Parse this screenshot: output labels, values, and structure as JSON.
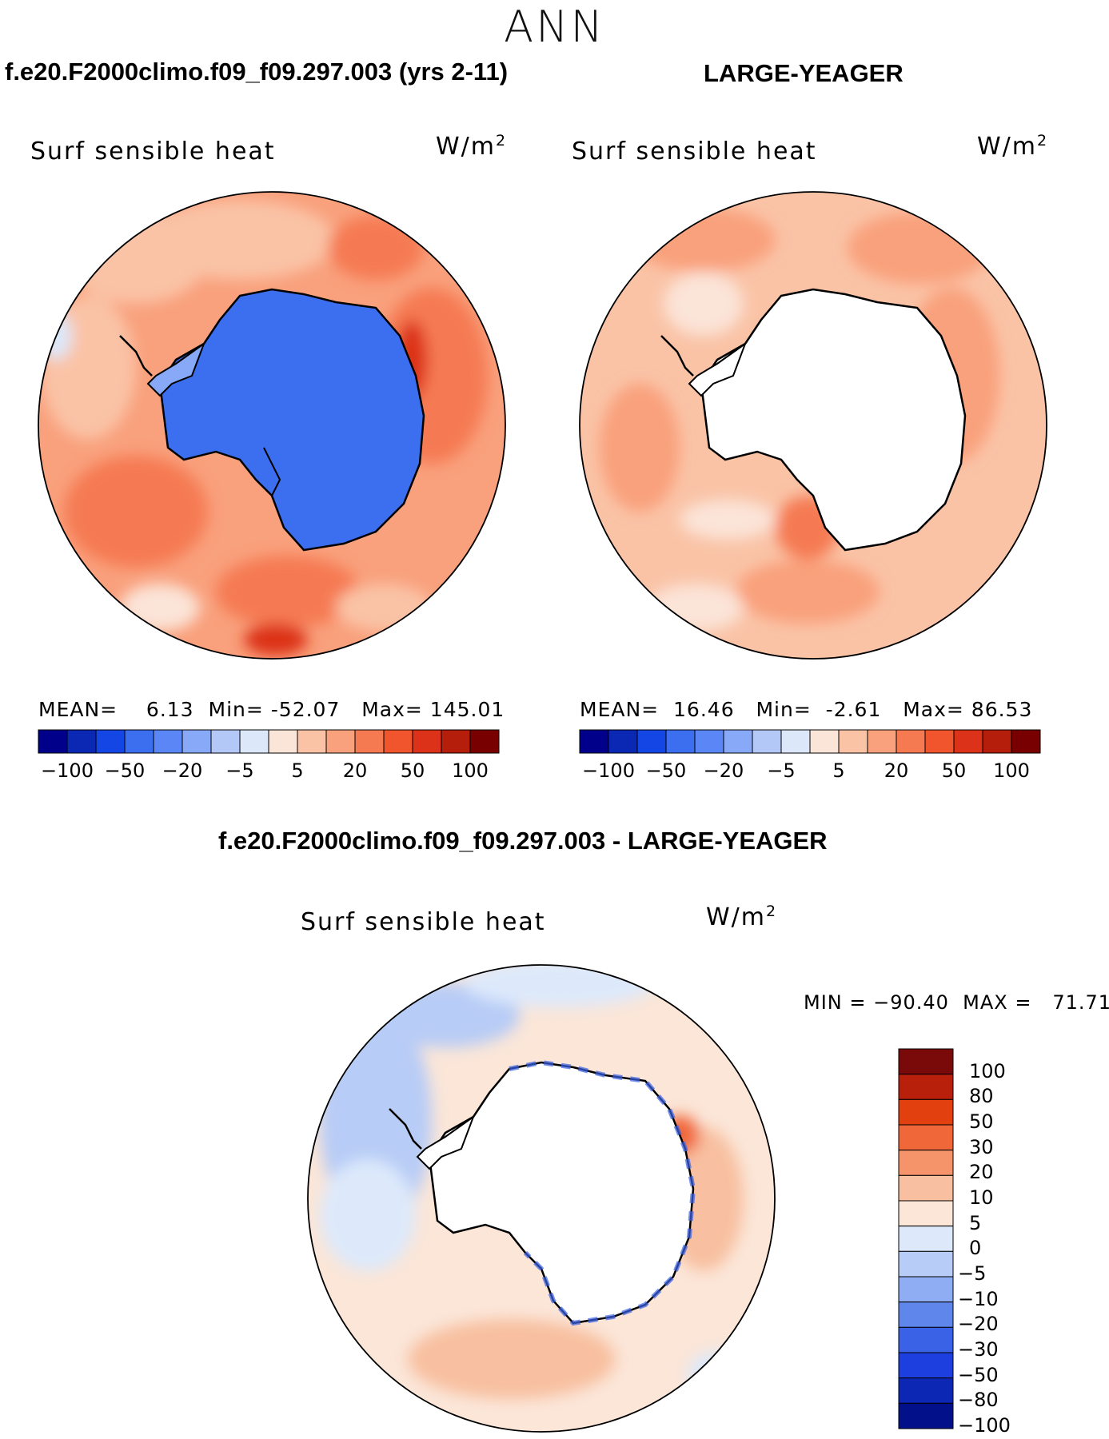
{
  "figure": {
    "season": "ANN",
    "test_case": "f.e20.F2000climo.f09_f09.297.003 (yrs 2-11)",
    "control_case": "LARGE-YEAGER",
    "diff_title": "f.e20.F2000climo.f09_f09.297.003 - LARGE-YEAGER"
  },
  "chart_data": [
    {
      "type": "heatmap",
      "projection": "south polar stereographic",
      "title": "Surf sensible heat",
      "units_base": "W/m",
      "units_exp": "2",
      "mean_label": "MEAN=",
      "mean": "6.13",
      "min_label": "Min=",
      "min": "-52.07",
      "max_label": "Max=",
      "max": "145.01",
      "levels": [
        "-100",
        "-50",
        "-20",
        "-5",
        "5",
        "20",
        "50",
        "100"
      ],
      "colors": [
        "#00008b",
        "#0a28b4",
        "#1446e6",
        "#3c6ef0",
        "#5a87f5",
        "#87a9f7",
        "#b4c8f7",
        "#dce8fa",
        "#fbe4d8",
        "#fac3a6",
        "#f9a07c",
        "#f57a52",
        "#f0552d",
        "#dc3219",
        "#b41e0a",
        "#780000"
      ]
    },
    {
      "type": "heatmap",
      "projection": "south polar stereographic",
      "title": "Surf sensible heat",
      "units_base": "W/m",
      "units_exp": "2",
      "mean_label": "MEAN=",
      "mean": "16.46",
      "min_label": "Min=",
      "min": "-2.61",
      "max_label": "Max=",
      "max": "86.53",
      "levels": [
        "-100",
        "-50",
        "-20",
        "-5",
        "5",
        "20",
        "50",
        "100"
      ],
      "colors": [
        "#00008b",
        "#0a28b4",
        "#1446e6",
        "#3c6ef0",
        "#5a87f5",
        "#87a9f7",
        "#b4c8f7",
        "#dce8fa",
        "#fbe4d8",
        "#fac3a6",
        "#f9a07c",
        "#f57a52",
        "#f0552d",
        "#dc3219",
        "#b41e0a",
        "#780000"
      ]
    },
    {
      "type": "heatmap",
      "projection": "south polar stereographic",
      "title": "Surf sensible heat",
      "units_base": "W/m",
      "units_exp": "2",
      "minmax_label": "MIN = −90.40  MAX =   71.71",
      "levels": [
        "100",
        "80",
        "50",
        "30",
        "20",
        "10",
        "5",
        "0",
        "−5",
        "−10",
        "−20",
        "−30",
        "−50",
        "−80",
        "−100"
      ],
      "colors": [
        "#7a0a0a",
        "#b8200c",
        "#e2400f",
        "#f0683a",
        "#f5936a",
        "#f8c0a0",
        "#fbe6d8",
        "#dde9fb",
        "#b7ccf6",
        "#8eadf2",
        "#5f86ea",
        "#3a62e6",
        "#1e3fe0",
        "#0b27b4",
        "#02108a"
      ]
    }
  ]
}
